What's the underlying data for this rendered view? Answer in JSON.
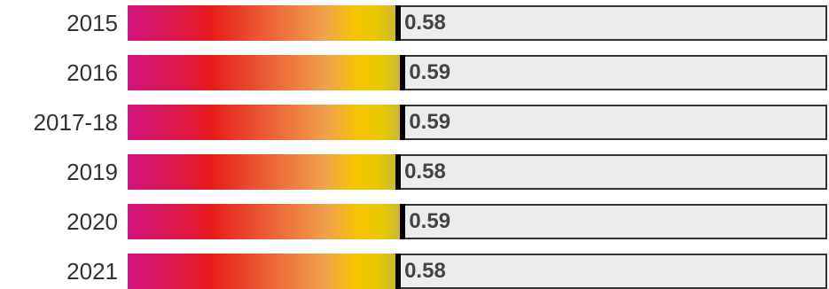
{
  "chart_data": {
    "type": "bar",
    "categories": [
      "2015",
      "2016",
      "2017-18",
      "2019",
      "2020",
      "2021"
    ],
    "values": [
      0.58,
      0.59,
      0.59,
      0.58,
      0.59,
      0.58
    ],
    "value_labels": [
      "0.58",
      "0.59",
      "0.59",
      "0.58",
      "0.59",
      "0.58"
    ],
    "xlim": [
      0,
      1.5
    ],
    "orientation": "horizontal",
    "title": "",
    "xlabel": "",
    "ylabel": "",
    "grid": false,
    "legend": "none",
    "colors": {
      "gradient": [
        "#d4147f",
        "#e81a1a",
        "#ec6b3a",
        "#f0a24c",
        "#f5c400",
        "#c8b63a"
      ],
      "track": "#ececec",
      "marker": "#000000",
      "label_text": "#333333",
      "value_text": "#444444"
    }
  }
}
